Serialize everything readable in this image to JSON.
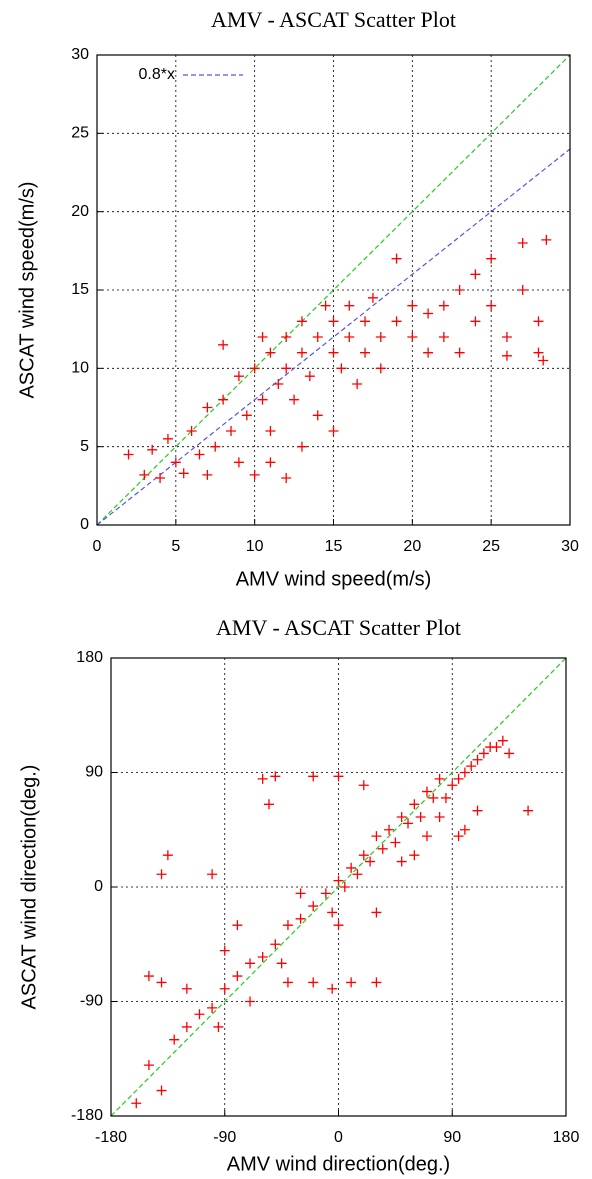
{
  "chart_data": [
    {
      "type": "scatter",
      "title": "AMV - ASCAT Scatter Plot",
      "x_label": "AMV wind speed(m/s)",
      "y_label": "ASCAT wind speed(m/s)",
      "xlim": [
        0,
        30
      ],
      "ylim": [
        0,
        30
      ],
      "xticks": [
        0,
        5,
        10,
        15,
        20,
        25,
        30
      ],
      "yticks": [
        0,
        5,
        10,
        15,
        20,
        25,
        30
      ],
      "grid": true,
      "legend": "top-left",
      "series": [
        {
          "type": "line",
          "color": "#22cc22",
          "x": [
            0,
            30
          ],
          "values": [
            0,
            30
          ]
        },
        {
          "type": "line",
          "name": "0.8*x",
          "color": "#5555ee",
          "x": [
            0,
            30
          ],
          "values": [
            0,
            24
          ]
        },
        {
          "type": "scatter",
          "color": "#ff0000",
          "x": [
            2,
            3,
            3.5,
            4,
            4.5,
            5,
            5.5,
            6,
            6.5,
            7,
            7,
            7.5,
            8,
            8.5,
            9,
            9,
            9.5,
            10,
            10,
            10.5,
            11,
            11,
            11.5,
            12,
            12,
            12.5,
            13,
            13,
            13.5,
            14,
            14,
            14.5,
            15,
            15,
            15.5,
            16,
            16,
            16.5,
            17,
            17,
            17.5,
            18,
            18,
            19,
            19,
            20,
            20,
            21,
            21,
            22,
            22,
            23,
            23,
            24,
            24,
            25,
            25,
            26,
            26,
            27,
            27,
            28,
            28,
            28.5,
            28.3,
            13,
            15,
            10.5,
            8,
            11,
            12
          ],
          "values": [
            4.5,
            3.2,
            4.8,
            3,
            5.5,
            4,
            3.3,
            6,
            4.5,
            7.5,
            3.2,
            5,
            8,
            6,
            9.5,
            4,
            7,
            10,
            3.2,
            8,
            11,
            6,
            9,
            12,
            10,
            8,
            13,
            11,
            9.5,
            12,
            7,
            14,
            11,
            13,
            10,
            12,
            14,
            9,
            13,
            11,
            14.5,
            12,
            10,
            13,
            17,
            12,
            14,
            11,
            13.5,
            14,
            12,
            15,
            11,
            13,
            16,
            14,
            17,
            12,
            10.8,
            15,
            18,
            13,
            11,
            18.2,
            10.5,
            5,
            6,
            12,
            11.5,
            4,
            3
          ]
        }
      ]
    },
    {
      "type": "scatter",
      "title": "AMV - ASCAT Scatter Plot",
      "x_label": "AMV wind direction(deg.)",
      "y_label": "ASCAT wind direction(deg.)",
      "xlim": [
        -180,
        180
      ],
      "ylim": [
        -180,
        180
      ],
      "xticks": [
        -180,
        -90,
        0,
        90,
        180
      ],
      "yticks": [
        -180,
        -90,
        0,
        90,
        180
      ],
      "grid": true,
      "series": [
        {
          "type": "line",
          "color": "#22cc22",
          "x": [
            -180,
            180
          ],
          "values": [
            -180,
            180
          ]
        },
        {
          "type": "scatter",
          "color": "#ff0000",
          "x": [
            -160,
            -150,
            -140,
            -130,
            -120,
            -110,
            -100,
            -95,
            -90,
            -80,
            -70,
            -60,
            -50,
            -45,
            -40,
            -30,
            -20,
            -10,
            -5,
            0,
            5,
            10,
            15,
            20,
            25,
            30,
            35,
            40,
            45,
            50,
            55,
            60,
            65,
            70,
            75,
            80,
            85,
            90,
            95,
            100,
            105,
            110,
            115,
            120,
            125,
            130,
            135,
            150,
            -150,
            -140,
            -120,
            -140,
            -135,
            -100,
            -60,
            -50,
            -20,
            0,
            20,
            -55,
            -40,
            -20,
            10,
            30,
            -70,
            -5,
            30,
            50,
            60,
            95,
            100,
            110,
            -30,
            0,
            -80,
            -90,
            70,
            80
          ],
          "values": [
            -170,
            -140,
            -160,
            -120,
            -110,
            -100,
            -95,
            -110,
            -80,
            -70,
            -60,
            -55,
            -45,
            -60,
            -30,
            -25,
            -15,
            -5,
            -20,
            5,
            0,
            15,
            10,
            25,
            20,
            40,
            30,
            45,
            35,
            55,
            50,
            65,
            55,
            75,
            70,
            85,
            70,
            80,
            85,
            90,
            95,
            100,
            105,
            110,
            110,
            115,
            105,
            60,
            -70,
            -75,
            -80,
            10,
            25,
            10,
            85,
            87,
            87,
            87,
            80,
            65,
            -75,
            -75,
            -75,
            -75,
            -90,
            -80,
            -20,
            20,
            25,
            40,
            45,
            60,
            -5,
            -30,
            -30,
            -50,
            40,
            55
          ]
        }
      ]
    }
  ]
}
